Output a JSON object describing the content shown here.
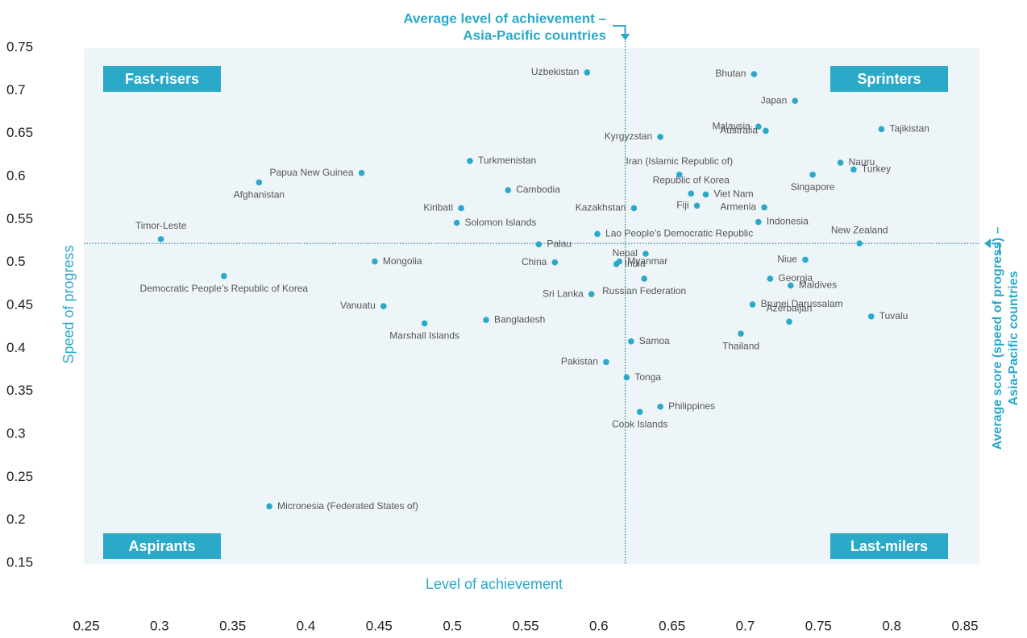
{
  "chart_data": {
    "type": "scatter",
    "x_label": "Level of achievement",
    "y_label": "Speed of progress",
    "color": "#2aa9c9",
    "xlim": [
      0.25,
      0.85
    ],
    "xticks": [
      0.25,
      0.3,
      0.35,
      0.4,
      0.45,
      0.5,
      0.55,
      0.6,
      0.65,
      0.7,
      0.75,
      0.8,
      0.85
    ],
    "ylim": [
      0.15,
      0.75
    ],
    "yticks": [
      0.15,
      0.2,
      0.25,
      0.3,
      0.35,
      0.4,
      0.45,
      0.5,
      0.55,
      0.6,
      0.65,
      0.7,
      0.75
    ],
    "quadrants": [
      "Fast-risers",
      "Sprinters",
      "Aspirants",
      "Last-milers"
    ],
    "x_average": {
      "value": 0.618,
      "lines": [
        "Average level of achievement –",
        "Asia-Pacific countries"
      ]
    },
    "y_average": {
      "value": 0.522,
      "lines": [
        "Average score (speed of progress) –",
        "Asia-Pacific countries"
      ]
    },
    "point_labels": [
      "Uzbekistan",
      "Bhutan",
      "Japan",
      "Malaysia",
      "Australia",
      "Tajikistan",
      "Kyrgyzstan",
      "Nauru",
      "Turkey",
      "Singapore",
      "Iran (Islamic Republic of)",
      "Papua New Guinea",
      "Turkmenistan",
      "Afghanistan",
      "Cambodia",
      "Republic of Korea",
      "Viet Nam",
      "Kiribati",
      "Kazakhstan",
      "Fiji",
      "Armenia",
      "Solomon Islands",
      "Indonesia",
      "Lao People’s Democratic Republic",
      "Timor-Leste",
      "Palau",
      "New Zealand",
      "Nepal",
      "Mongolia",
      "China",
      "Myanmar",
      "India",
      "Niue",
      "Democratic People’s Republic of Korea",
      "Russian Federation",
      "Georgia",
      "Maldives",
      "Sri Lanka",
      "Brunei Darussalam",
      "Vanuatu",
      "Tuvalu",
      "Bangladesh",
      "Azerbaijan",
      "Marshall Islands",
      "Thailand",
      "Samoa",
      "Pakistan",
      "Tonga",
      "Philippines",
      "Cook Islands",
      "Micronesia (Federated States of)"
    ],
    "x": [
      0.592,
      0.706,
      0.734,
      0.709,
      0.714,
      0.793,
      0.642,
      0.765,
      0.774,
      0.746,
      0.655,
      0.438,
      0.512,
      0.368,
      0.538,
      0.663,
      0.673,
      0.506,
      0.624,
      0.667,
      0.713,
      0.503,
      0.709,
      0.599,
      0.301,
      0.559,
      0.778,
      0.632,
      0.447,
      0.57,
      0.614,
      0.612,
      0.741,
      0.344,
      0.631,
      0.717,
      0.731,
      0.595,
      0.705,
      0.453,
      0.786,
      0.523,
      0.73,
      0.481,
      0.697,
      0.622,
      0.605,
      0.619,
      0.642,
      0.628,
      0.375
    ],
    "values": [
      0.721,
      0.719,
      0.688,
      0.658,
      0.653,
      0.655,
      0.646,
      0.616,
      0.608,
      0.602,
      0.602,
      0.604,
      0.618,
      0.593,
      0.584,
      0.58,
      0.579,
      0.563,
      0.563,
      0.566,
      0.564,
      0.546,
      0.547,
      0.533,
      0.527,
      0.521,
      0.522,
      0.51,
      0.501,
      0.5,
      0.501,
      0.498,
      0.503,
      0.484,
      0.481,
      0.481,
      0.473,
      0.463,
      0.451,
      0.449,
      0.437,
      0.433,
      0.431,
      0.429,
      0.417,
      0.408,
      0.384,
      0.366,
      0.332,
      0.326,
      0.216
    ]
  }
}
